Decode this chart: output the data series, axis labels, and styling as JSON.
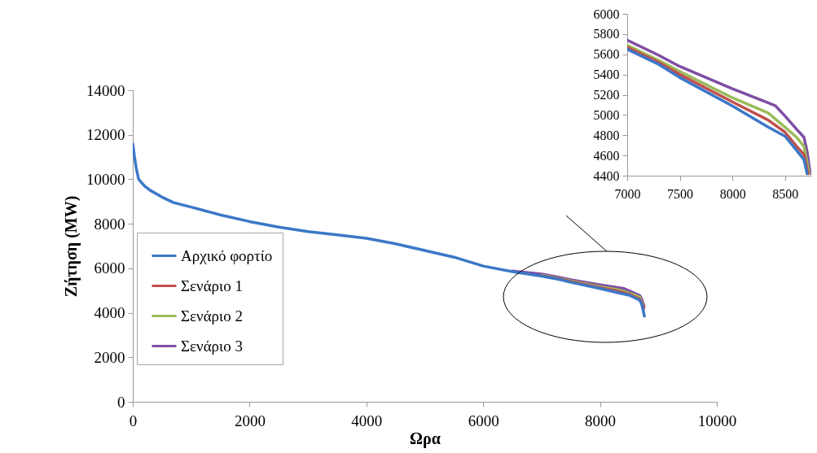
{
  "chart_data": [
    {
      "type": "line",
      "xlabel": "Ωρα",
      "ylabel": "Ζήτηση (MW)",
      "xlim": [
        0,
        10000
      ],
      "ylim": [
        0,
        14000
      ],
      "xticks": [
        0,
        2000,
        4000,
        6000,
        8000,
        10000
      ],
      "yticks": [
        0,
        2000,
        4000,
        6000,
        8000,
        10000,
        12000,
        14000
      ],
      "grid": false,
      "legend": "bottom left",
      "series": [
        {
          "name": "Αρχικό φορτίο",
          "color": "#3c78c8",
          "x": [
            0,
            30,
            60,
            100,
            200,
            300,
            500,
            700,
            1000,
            1500,
            2000,
            2500,
            3000,
            3500,
            4000,
            4500,
            5000,
            5500,
            6000,
            6500,
            7000,
            7300,
            7500,
            8000,
            8340,
            8500,
            8610,
            8680,
            8710,
            8740,
            8760
          ],
          "values": [
            11600,
            11000,
            10500,
            10000,
            9700,
            9500,
            9200,
            8950,
            8750,
            8400,
            8100,
            7850,
            7650,
            7500,
            7350,
            7100,
            6800,
            6500,
            6100,
            5850,
            5650,
            5500,
            5370,
            5090,
            4880,
            4790,
            4650,
            4560,
            4420,
            4100,
            3850
          ]
        },
        {
          "name": "Σενάριο 1",
          "color": "#c0504d",
          "x": [
            7000,
            7300,
            7500,
            8000,
            8340,
            8500,
            8610,
            8680,
            8720,
            8750
          ],
          "values": [
            5670,
            5520,
            5400,
            5130,
            4950,
            4830,
            4690,
            4610,
            4420,
            4200
          ]
        },
        {
          "name": "Σενάριο 2",
          "color": "#9bbb59",
          "x": [
            7000,
            7300,
            7500,
            8000,
            8340,
            8500,
            8610,
            8680,
            8730,
            8750
          ],
          "values": [
            5690,
            5540,
            5430,
            5170,
            5020,
            4880,
            4780,
            4690,
            4420,
            4200
          ]
        },
        {
          "name": "Σενάριο 3",
          "color": "#7f4ea3",
          "x": [
            6500,
            7000,
            7300,
            7500,
            8000,
            8340,
            8410,
            8500,
            8610,
            8680,
            8710,
            8740,
            8755
          ],
          "values": [
            5880,
            5740,
            5590,
            5480,
            5260,
            5120,
            5090,
            4990,
            4860,
            4780,
            4640,
            4420,
            4300
          ]
        }
      ]
    },
    {
      "type": "line",
      "xlim": [
        7000,
        8750
      ],
      "ylim": [
        4400,
        6000
      ],
      "xticks": [
        7000,
        7500,
        8000,
        8500
      ],
      "yticks": [
        4400,
        4600,
        4800,
        5000,
        5200,
        5400,
        5600,
        5800,
        6000
      ],
      "grid": false,
      "series": [
        {
          "color": "#3c78c8",
          "x": [
            7000,
            7300,
            7500,
            8000,
            8340,
            8500,
            8610,
            8680,
            8710
          ],
          "values": [
            5650,
            5500,
            5370,
            5090,
            4880,
            4790,
            4650,
            4560,
            4420
          ]
        },
        {
          "color": "#c0504d",
          "x": [
            7000,
            7300,
            7500,
            8000,
            8340,
            8500,
            8610,
            8680,
            8720
          ],
          "values": [
            5670,
            5520,
            5400,
            5130,
            4950,
            4830,
            4690,
            4610,
            4420
          ]
        },
        {
          "color": "#9bbb59",
          "x": [
            7000,
            7300,
            7500,
            8000,
            8340,
            8500,
            8610,
            8680,
            8730
          ],
          "values": [
            5690,
            5540,
            5430,
            5170,
            5020,
            4880,
            4780,
            4690,
            4420
          ]
        },
        {
          "color": "#7f4ea3",
          "x": [
            7000,
            7300,
            7500,
            8000,
            8340,
            8410,
            8500,
            8610,
            8680,
            8710,
            8740
          ],
          "values": [
            5740,
            5590,
            5480,
            5260,
            5120,
            5090,
            4990,
            4860,
            4780,
            4640,
            4420
          ]
        }
      ]
    }
  ]
}
